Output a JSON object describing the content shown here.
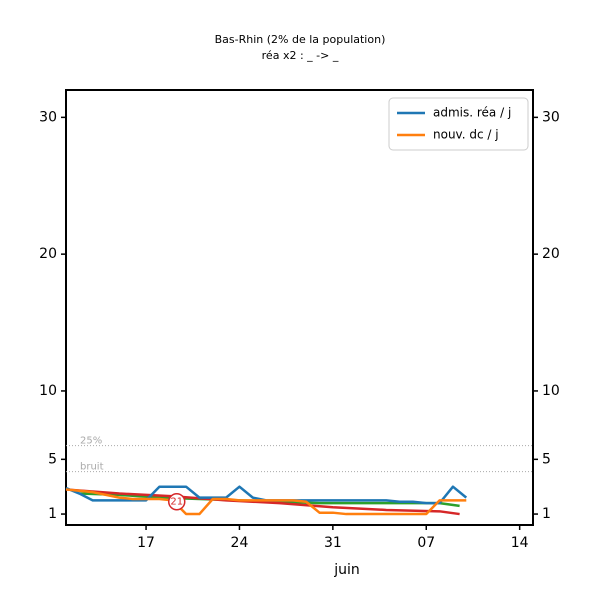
{
  "chart_data": {
    "type": "line",
    "title": "Bas-Rhin (2% de la population)",
    "subtitle": "réa x2 : _ -> _",
    "xlabel": "juin",
    "xlim": [
      0,
      35
    ],
    "xticks": [
      {
        "value": 6,
        "label": "17"
      },
      {
        "value": 13,
        "label": "24"
      },
      {
        "value": 20,
        "label": "31"
      },
      {
        "value": 27,
        "label": "07"
      },
      {
        "value": 34,
        "label": "14"
      }
    ],
    "ylim": [
      0.2,
      32
    ],
    "yticks": [
      1,
      5,
      10,
      20,
      30
    ],
    "legend": "upper right",
    "series": [
      {
        "name": "admis. réa / j",
        "color": "#1f77b4",
        "x": [
          0,
          1,
          2,
          3,
          4,
          5,
          6,
          7,
          8,
          9,
          10,
          11,
          12,
          13,
          14,
          15,
          16,
          17,
          18,
          19,
          20,
          21,
          22,
          23,
          24,
          25,
          26,
          27,
          28,
          29,
          30
        ],
        "values": [
          2.9,
          2.5,
          2.0,
          2.0,
          2.0,
          2.0,
          2.0,
          3.0,
          3.0,
          3.0,
          2.2,
          2.2,
          2.2,
          3.0,
          2.2,
          2.0,
          2.0,
          2.0,
          2.0,
          2.0,
          2.0,
          2.0,
          2.0,
          2.0,
          2.0,
          1.9,
          1.9,
          1.8,
          1.8,
          3.0,
          2.2
        ]
      },
      {
        "name": "nouv. dc / j",
        "color": "#ff7f0e",
        "x": [
          0,
          1,
          2,
          3,
          4,
          5,
          6,
          7,
          8,
          9,
          10,
          11,
          12,
          13,
          14,
          15,
          16,
          17,
          18,
          19,
          20,
          21,
          22,
          23,
          24,
          25,
          26,
          27,
          28,
          29,
          30
        ],
        "values": [
          2.8,
          2.7,
          2.6,
          2.4,
          2.2,
          2.1,
          2.1,
          2.1,
          2.0,
          1.0,
          1.0,
          2.1,
          2.1,
          2.0,
          2.0,
          2.0,
          2.0,
          2.0,
          1.9,
          1.1,
          1.1,
          1.0,
          1.0,
          1.0,
          1.0,
          1.0,
          1.0,
          1.0,
          2.0,
          2.0,
          2.0
        ]
      }
    ],
    "lines": [
      {
        "color": "#2ca02c",
        "x": [
          1,
          4,
          7,
          10,
          13,
          16,
          19,
          22,
          25,
          28,
          29.5
        ],
        "values": [
          2.5,
          2.4,
          2.2,
          2.1,
          2.0,
          1.9,
          1.8,
          1.8,
          1.8,
          1.8,
          1.6
        ]
      },
      {
        "color": "#d62728",
        "x": [
          0,
          4,
          8,
          12,
          16,
          20,
          24,
          28,
          29.5
        ],
        "values": [
          2.8,
          2.5,
          2.3,
          2.0,
          1.8,
          1.5,
          1.3,
          1.2,
          1.0
        ]
      }
    ],
    "reference_lines": [
      {
        "label": "25%",
        "value": 6.0
      },
      {
        "label": "bruit",
        "value": 4.1
      }
    ],
    "marker": {
      "label": "21",
      "x": 8.3,
      "value": 1.9
    }
  }
}
